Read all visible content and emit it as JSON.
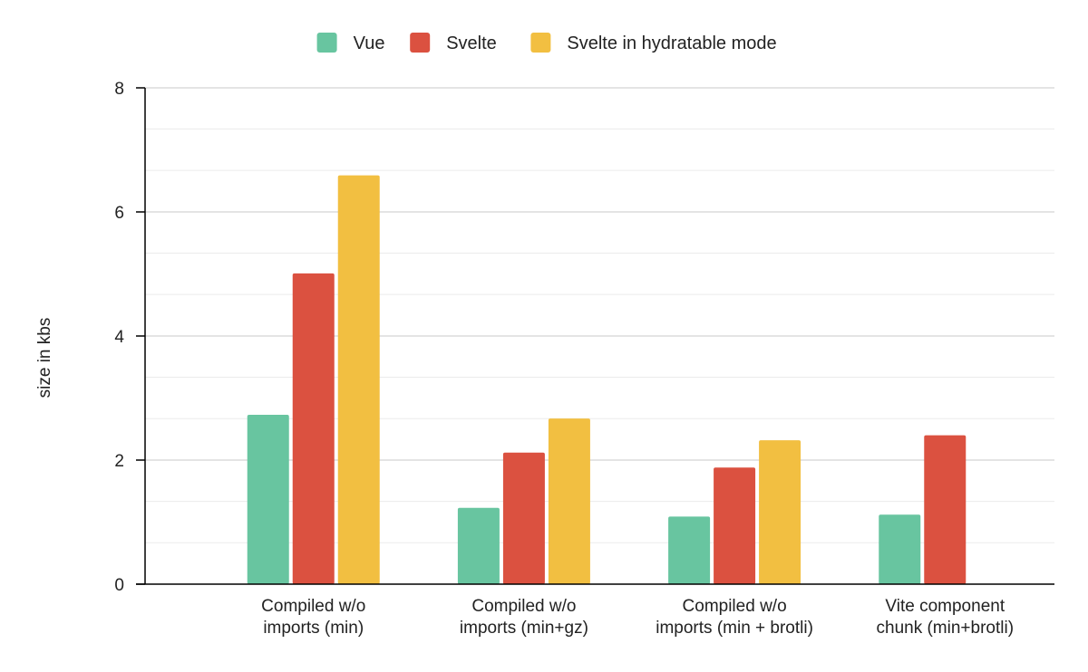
{
  "chart_data": {
    "type": "bar",
    "title": "",
    "xlabel": "",
    "ylabel": "size in kbs",
    "ylim": [
      0,
      8
    ],
    "major_ticks": [
      0,
      2,
      4,
      6,
      8
    ],
    "minor_grid_step": 0.667,
    "grid": true,
    "legend_position": "top-center",
    "categories": [
      [
        "Compiled w/o",
        "imports (min)"
      ],
      [
        "Compiled w/o",
        "imports (min+gz)"
      ],
      [
        "Compiled w/o",
        "imports (min + brotli)"
      ],
      [
        "Vite component",
        "chunk (min+brotli)"
      ]
    ],
    "series": [
      {
        "name": "Vue",
        "color": "#68c5a0",
        "values": [
          2.73,
          1.23,
          1.09,
          1.12
        ]
      },
      {
        "name": "Svelte",
        "color": "#db5140",
        "values": [
          5.01,
          2.12,
          1.88,
          2.4
        ]
      },
      {
        "name": "Svelte in hydratable mode",
        "color": "#f2bf41",
        "values": [
          6.59,
          2.67,
          2.32,
          null
        ]
      }
    ]
  }
}
